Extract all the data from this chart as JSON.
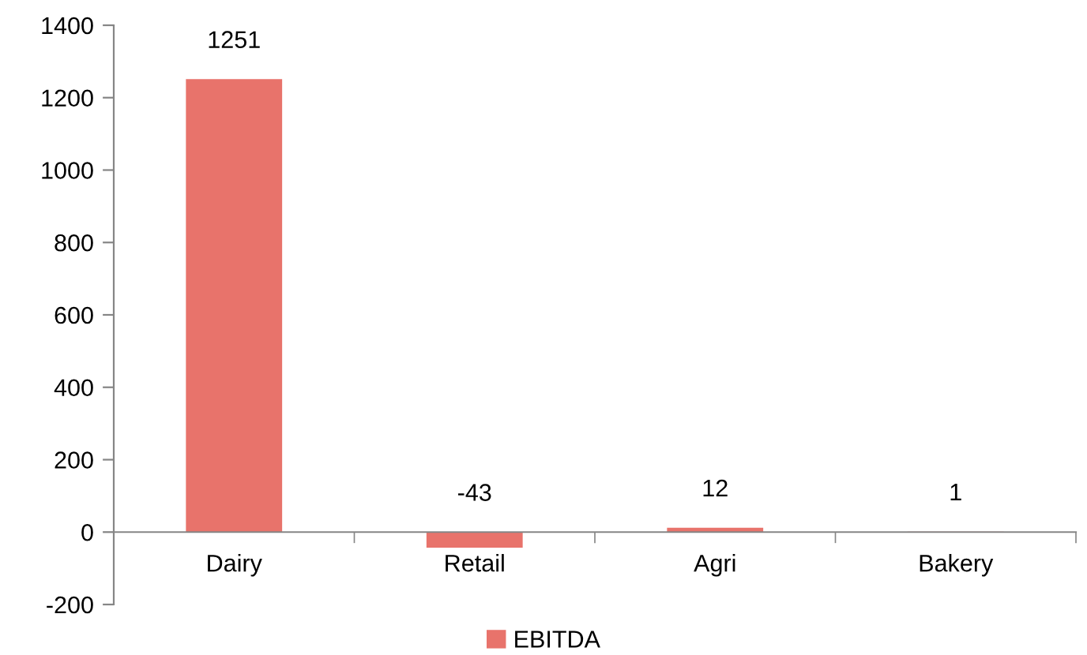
{
  "chart_data": {
    "type": "bar",
    "categories": [
      "Dairy",
      "Retail",
      "Agri",
      "Bakery"
    ],
    "series": [
      {
        "name": "EBITDA",
        "color": "#e8736b",
        "values": [
          1251,
          -43,
          12,
          1
        ]
      }
    ],
    "ylim": [
      -200,
      1400
    ],
    "yticks": [
      -200,
      0,
      200,
      400,
      600,
      800,
      1000,
      1200,
      1400
    ],
    "data_labels": true,
    "legend": "bottom",
    "grid": false
  }
}
